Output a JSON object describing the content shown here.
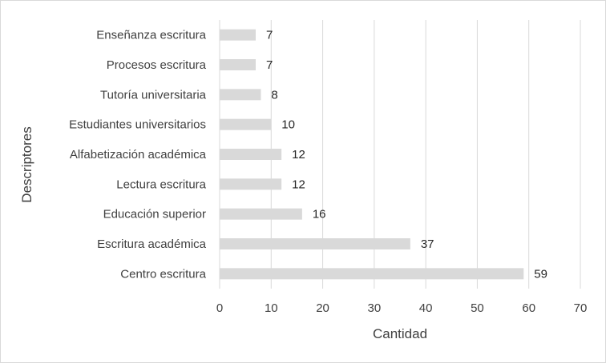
{
  "chart_data": {
    "type": "bar",
    "orientation": "horizontal",
    "categories": [
      "Enseñanza  escritura",
      "Procesos  escritura",
      "Tutoría universitaria",
      "Estudiantes universitarios",
      "Alfabetización académica",
      "Lectura escritura",
      "Educación superior",
      "Escritura académica",
      "Centro escritura"
    ],
    "values": [
      7,
      7,
      8,
      10,
      12,
      12,
      16,
      37,
      59
    ],
    "xlabel": "Cantidad",
    "ylabel": "Descriptores",
    "xlim": [
      0,
      70
    ],
    "xticks": [
      0,
      10,
      20,
      30,
      40,
      50,
      60,
      70
    ],
    "grid": "vertical",
    "legend": "none",
    "data_labels": true,
    "bar_color": "#d9d9d9",
    "grid_color": "#d9d9d9"
  }
}
